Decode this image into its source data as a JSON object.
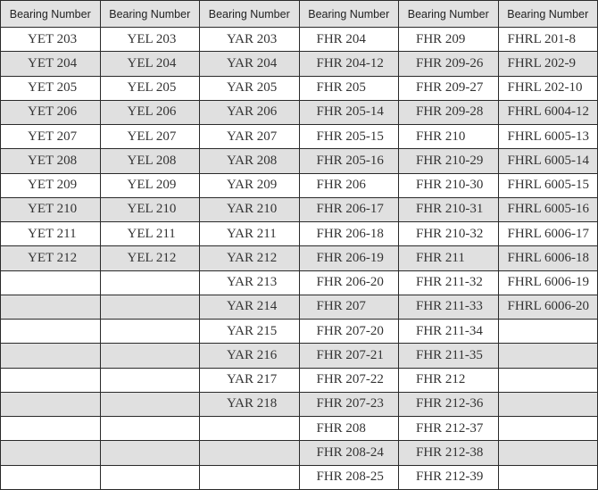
{
  "table": {
    "headers": [
      "Bearing Number",
      "Bearing Number",
      "Bearing Number",
      "Bearing Number",
      "Bearing Number",
      "Bearing Number"
    ],
    "rows": [
      [
        "YET 203",
        "YEL 203",
        "YAR 203",
        "FHR 204",
        "FHR 209",
        "FHRL 201-8"
      ],
      [
        "YET 204",
        "YEL 204",
        "YAR 204",
        "FHR 204-12",
        "FHR 209-26",
        "FHRL 202-9"
      ],
      [
        "YET 205",
        "YEL 205",
        "YAR 205",
        "FHR 205",
        "FHR 209-27",
        "FHRL 202-10"
      ],
      [
        "YET 206",
        "YEL 206",
        "YAR 206",
        "FHR 205-14",
        "FHR 209-28",
        "FHRL 6004-12"
      ],
      [
        "YET 207",
        "YEL 207",
        "YAR 207",
        "FHR 205-15",
        "FHR 210",
        "FHRL 6005-13"
      ],
      [
        "YET 208",
        "YEL 208",
        "YAR 208",
        "FHR 205-16",
        "FHR 210-29",
        "FHRL 6005-14"
      ],
      [
        "YET 209",
        "YEL 209",
        "YAR 209",
        "FHR 206",
        "FHR 210-30",
        "FHRL 6005-15"
      ],
      [
        "YET 210",
        "YEL 210",
        "YAR 210",
        "FHR 206-17",
        "FHR 210-31",
        "FHRL 6005-16"
      ],
      [
        "YET 211",
        "YEL 211",
        "YAR 211",
        "FHR 206-18",
        "FHR 210-32",
        "FHRL 6006-17"
      ],
      [
        "YET 212",
        "YEL 212",
        "YAR 212",
        "FHR 206-19",
        "FHR 211",
        "FHRL 6006-18"
      ],
      [
        "",
        "",
        "YAR 213",
        "FHR 206-20",
        "FHR 211-32",
        "FHRL 6006-19"
      ],
      [
        "",
        "",
        "YAR 214",
        "FHR 207",
        "FHR 211-33",
        "FHRL 6006-20"
      ],
      [
        "",
        "",
        "YAR 215",
        "FHR 207-20",
        "FHR 211-34",
        ""
      ],
      [
        "",
        "",
        "YAR 216",
        "FHR 207-21",
        "FHR 211-35",
        ""
      ],
      [
        "",
        "",
        "YAR 217",
        "FHR 207-22",
        "FHR 212",
        ""
      ],
      [
        "",
        "",
        "YAR 218",
        "FHR 207-23",
        "FHR 212-36",
        ""
      ],
      [
        "",
        "",
        "",
        "FHR 208",
        "FHR 212-37",
        ""
      ],
      [
        "",
        "",
        "",
        "FHR 208-24",
        "FHR 212-38",
        ""
      ],
      [
        "",
        "",
        "",
        "FHR 208-25",
        "FHR 212-39",
        ""
      ]
    ]
  },
  "colors": {
    "header_bg": "#e2e2e2",
    "alt_row_bg": "#e0e0e0",
    "border": "#2a2a2a"
  }
}
